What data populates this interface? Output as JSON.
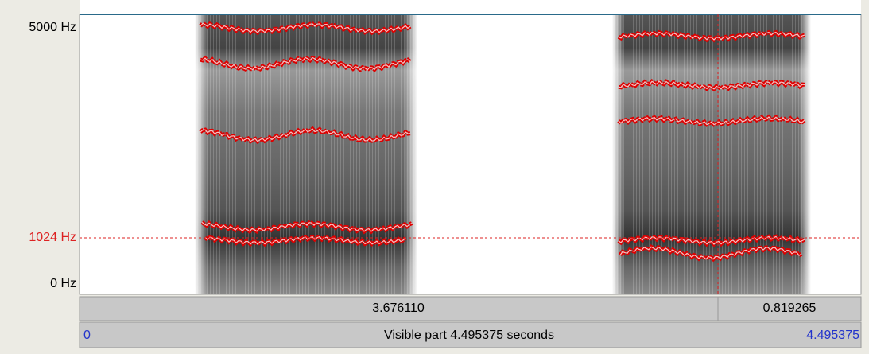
{
  "frequency_axis": {
    "top_label": "5000 Hz",
    "cursor_label": "1024 Hz",
    "bottom_label": "0 Hz"
  },
  "time_bar": {
    "selection": "3.676110",
    "after_cursor": "0.819265"
  },
  "visible_bar": {
    "start": "0",
    "label": "Visible part 4.495375 seconds",
    "end": "4.495375"
  }
}
